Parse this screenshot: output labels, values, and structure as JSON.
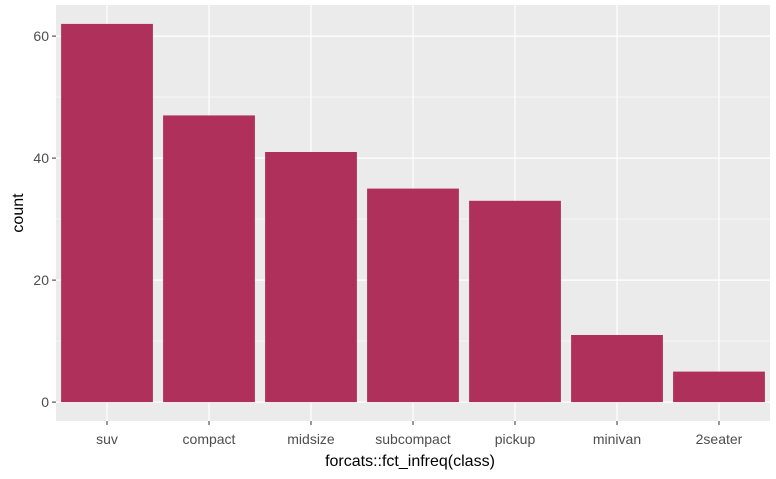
{
  "chart_data": {
    "type": "bar",
    "title": "",
    "xlabel": "forcats::fct_infreq(class)",
    "ylabel": "count",
    "categories": [
      "suv",
      "compact",
      "midsize",
      "subcompact",
      "pickup",
      "minivan",
      "2seater"
    ],
    "values": [
      62,
      47,
      41,
      35,
      33,
      11,
      5
    ],
    "ylim": [
      -3.1,
      65.1
    ],
    "yticks": [
      0,
      20,
      40,
      60
    ],
    "grid": true,
    "legend": "none",
    "colors": {
      "bar": "#B0305C",
      "panel": "#EBEBEB",
      "grid_major": "#FFFFFF",
      "tick_text": "#4D4D4D"
    }
  }
}
